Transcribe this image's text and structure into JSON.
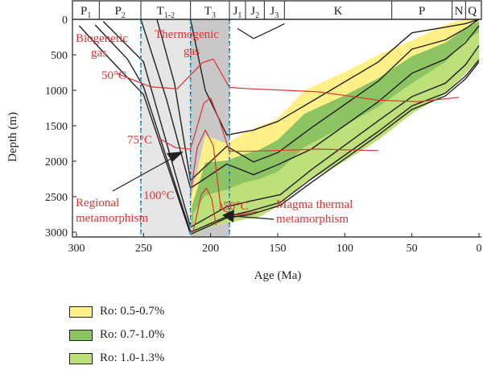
{
  "chart_data": {
    "type": "area",
    "title": "",
    "xlabel": "Age (Ma)",
    "ylabel": "Depth (m)",
    "xlim": [
      300,
      0
    ],
    "ylim": [
      3000,
      0
    ],
    "x_ticks": [
      300,
      250,
      200,
      150,
      100,
      50,
      0
    ],
    "y_ticks": [
      0,
      500,
      1000,
      1500,
      2000,
      2500,
      3000
    ],
    "periods": [
      {
        "base": "P",
        "sub": "1",
        "from": 305,
        "to": 283
      },
      {
        "base": "P",
        "sub": "2",
        "from": 283,
        "to": 252
      },
      {
        "base": "T",
        "sub": "1-2",
        "from": 252,
        "to": 215
      },
      {
        "base": "T",
        "sub": "3",
        "from": 215,
        "to": 186
      },
      {
        "base": "J",
        "sub": "1",
        "from": 186,
        "to": 174
      },
      {
        "base": "J",
        "sub": "2",
        "from": 174,
        "to": 160
      },
      {
        "base": "J",
        "sub": "3",
        "from": 160,
        "to": 145
      },
      {
        "base": "K",
        "sub": "",
        "from": 145,
        "to": 65
      },
      {
        "base": "P",
        "sub": "",
        "from": 65,
        "to": 20
      },
      {
        "base": "N",
        "sub": "",
        "from": 20,
        "to": 10
      },
      {
        "base": "Q",
        "sub": "",
        "from": 10,
        "to": 0
      }
    ],
    "uplift_profile": [
      [
        180,
        130
      ],
      [
        168,
        270
      ],
      [
        150,
        110
      ],
      [
        145,
        60
      ]
    ],
    "zones": [
      {
        "x1": 252,
        "x2": 215,
        "color": "#e6e6e6"
      },
      {
        "x1": 215,
        "x2": 186,
        "color": "#c8c8c8"
      }
    ],
    "boundaries": [
      252,
      215,
      186
    ],
    "ro_bands": [
      {
        "name": "Ro: 0.5-0.7%",
        "color": "#fff187",
        "top": [
          [
            216,
            2620
          ],
          [
            204,
            1640
          ],
          [
            188,
            1750
          ],
          [
            175,
            1600
          ],
          [
            165,
            1520
          ],
          [
            150,
            1400
          ],
          [
            130,
            1000
          ],
          [
            100,
            740
          ],
          [
            75,
            500
          ],
          [
            50,
            300
          ],
          [
            25,
            70
          ],
          [
            10,
            0
          ],
          [
            0,
            0
          ]
        ],
        "bottom": [
          [
            216,
            2760
          ],
          [
            204,
            2620
          ],
          [
            188,
            2560
          ],
          [
            175,
            2500
          ],
          [
            165,
            2500
          ],
          [
            150,
            2300
          ],
          [
            130,
            1900
          ],
          [
            100,
            1600
          ],
          [
            75,
            1300
          ],
          [
            50,
            950
          ],
          [
            25,
            650
          ],
          [
            10,
            320
          ],
          [
            0,
            180
          ]
        ]
      },
      {
        "name": "Ro: 0.7-1.0%",
        "color": "#8cc463",
        "top": [
          [
            214,
            2640
          ],
          [
            204,
            2020
          ],
          [
            188,
            1990
          ],
          [
            175,
            1900
          ],
          [
            165,
            1850
          ],
          [
            150,
            1700
          ],
          [
            130,
            1330
          ],
          [
            100,
            1070
          ],
          [
            75,
            830
          ],
          [
            50,
            520
          ],
          [
            25,
            330
          ],
          [
            10,
            130
          ],
          [
            0,
            30
          ]
        ],
        "bottom": [
          [
            214,
            2900
          ],
          [
            204,
            2790
          ],
          [
            188,
            2690
          ],
          [
            175,
            2660
          ],
          [
            165,
            2640
          ],
          [
            150,
            2500
          ],
          [
            130,
            2150
          ],
          [
            100,
            1850
          ],
          [
            75,
            1550
          ],
          [
            50,
            1200
          ],
          [
            25,
            900
          ],
          [
            10,
            600
          ],
          [
            0,
            420
          ]
        ]
      },
      {
        "name": "Ro: 1.0-1.3%",
        "color": "#bde07a",
        "top": [
          [
            213,
            2740
          ],
          [
            204,
            2480
          ],
          [
            188,
            2400
          ],
          [
            175,
            2300
          ],
          [
            165,
            2260
          ],
          [
            150,
            2150
          ],
          [
            130,
            1800
          ],
          [
            100,
            1500
          ],
          [
            75,
            1230
          ],
          [
            50,
            900
          ],
          [
            25,
            600
          ],
          [
            10,
            300
          ],
          [
            0,
            180
          ]
        ],
        "bottom": [
          [
            213,
            3050
          ],
          [
            204,
            2950
          ],
          [
            188,
            2870
          ],
          [
            175,
            2820
          ],
          [
            165,
            2800
          ],
          [
            150,
            2640
          ],
          [
            130,
            2300
          ],
          [
            100,
            2000
          ],
          [
            75,
            1700
          ],
          [
            50,
            1330
          ],
          [
            25,
            1050
          ],
          [
            10,
            760
          ],
          [
            0,
            570
          ]
        ]
      }
    ],
    "burial_lines": [
      [
        [
          298,
          90
        ],
        [
          280,
          460
        ],
        [
          250,
          1060
        ],
        [
          215,
          3030
        ],
        [
          188,
          2800
        ],
        [
          170,
          2750
        ],
        [
          148,
          2620
        ],
        [
          125,
          2300
        ],
        [
          75,
          1630
        ],
        [
          50,
          1270
        ],
        [
          25,
          1080
        ],
        [
          10,
          840
        ],
        [
          0,
          600
        ]
      ],
      [
        [
          286,
          80
        ],
        [
          262,
          560
        ],
        [
          250,
          950
        ],
        [
          215,
          3000
        ],
        [
          188,
          2780
        ],
        [
          170,
          2700
        ],
        [
          148,
          2580
        ],
        [
          125,
          2250
        ],
        [
          75,
          1580
        ],
        [
          50,
          1220
        ],
        [
          25,
          1040
        ],
        [
          10,
          800
        ],
        [
          0,
          570
        ]
      ],
      [
        [
          280,
          30
        ],
        [
          250,
          600
        ],
        [
          215,
          2930
        ],
        [
          188,
          2640
        ],
        [
          170,
          2560
        ],
        [
          148,
          2470
        ],
        [
          125,
          2120
        ],
        [
          75,
          1430
        ],
        [
          50,
          1090
        ],
        [
          25,
          900
        ],
        [
          10,
          640
        ],
        [
          0,
          370
        ]
      ],
      [
        [
          252,
          0
        ],
        [
          233,
          1120
        ],
        [
          215,
          2380
        ],
        [
          188,
          2040
        ],
        [
          168,
          2190
        ],
        [
          150,
          2050
        ],
        [
          125,
          1830
        ],
        [
          75,
          1160
        ],
        [
          50,
          760
        ],
        [
          25,
          560
        ],
        [
          10,
          330
        ],
        [
          0,
          90
        ]
      ],
      [
        [
          240,
          0
        ],
        [
          227,
          900
        ],
        [
          215,
          2270
        ],
        [
          188,
          1790
        ],
        [
          168,
          2010
        ],
        [
          150,
          1880
        ],
        [
          125,
          1530
        ],
        [
          75,
          870
        ],
        [
          50,
          420
        ],
        [
          25,
          290
        ],
        [
          10,
          130
        ],
        [
          0,
          0
        ]
      ],
      [
        [
          215,
          0
        ],
        [
          204,
          1000
        ],
        [
          188,
          1630
        ],
        [
          168,
          1560
        ],
        [
          150,
          1440
        ],
        [
          125,
          1160
        ],
        [
          75,
          600
        ],
        [
          50,
          190
        ],
        [
          25,
          110
        ],
        [
          10,
          60
        ],
        [
          0,
          0
        ]
      ]
    ],
    "isotherms": [
      {
        "label": "50°C",
        "points": [
          [
            270,
            760
          ],
          [
            245,
            950
          ],
          [
            225,
            980
          ],
          [
            206,
            610
          ],
          [
            198,
            560
          ],
          [
            186,
            960
          ],
          [
            170,
            980
          ],
          [
            120,
            1020
          ],
          [
            75,
            1140
          ],
          [
            45,
            1160
          ],
          [
            15,
            1100
          ]
        ]
      },
      {
        "label": "75°C",
        "points": [
          [
            240,
            1660
          ],
          [
            226,
            1810
          ],
          [
            215,
            1830
          ],
          [
            205,
            1180
          ],
          [
            200,
            1110
          ],
          [
            194,
            1400
          ],
          [
            186,
            1860
          ],
          [
            170,
            1860
          ],
          [
            120,
            1830
          ],
          [
            75,
            1850
          ]
        ]
      },
      {
        "label": "100°C",
        "points": [
          [
            215,
            2450
          ],
          [
            210,
            1810
          ],
          [
            204,
            1560
          ],
          [
            198,
            1780
          ],
          [
            193,
            2570
          ],
          [
            190,
            2700
          ],
          [
            180,
            2760
          ],
          [
            165,
            2710
          ]
        ]
      },
      {
        "label": "150°C",
        "points": [
          [
            213,
            2990
          ],
          [
            207,
            2470
          ],
          [
            203,
            2380
          ],
          [
            199,
            2540
          ],
          [
            196,
            2900
          ]
        ]
      }
    ],
    "annotations": [
      {
        "text": "Biogenetic",
        "color": "#e03131"
      },
      {
        "text": "gas",
        "color": "#e03131"
      },
      {
        "text": "Thermogenic",
        "color": "#e03131"
      },
      {
        "text": "gas",
        "color": "#e03131"
      },
      {
        "text": "Regional",
        "color": "#e03131"
      },
      {
        "text": "metamorphism",
        "color": "#e03131"
      },
      {
        "text": "Magma thermal",
        "color": "#e03131"
      },
      {
        "text": "metamorphism",
        "color": "#e03131"
      }
    ],
    "legend": [
      {
        "label": "Ro: 0.5-0.7%",
        "color": "#fff187"
      },
      {
        "label": "Ro: 0.7-1.0%",
        "color": "#8cc463"
      },
      {
        "label": "Ro: 1.0-1.3%",
        "color": "#bde07a"
      }
    ]
  }
}
